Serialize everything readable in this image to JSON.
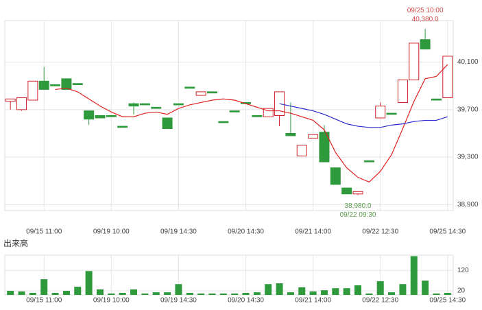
{
  "chart_data": [
    {
      "type": "candlestick",
      "categories": [
        null,
        null,
        null,
        "09/15 11:00",
        null,
        null,
        null,
        null,
        null,
        "09/19 10:00",
        null,
        null,
        null,
        null,
        null,
        "09/19 14:30",
        null,
        null,
        null,
        null,
        null,
        "09/20 14:30",
        null,
        null,
        null,
        null,
        null,
        "09/21 14:00",
        null,
        null,
        null,
        null,
        null,
        "09/22 12:30",
        null,
        null,
        null,
        null,
        null,
        "09/25 14:30"
      ],
      "open": [
        39770,
        39700,
        39780,
        39940,
        39910,
        39960,
        39920,
        39690,
        39650,
        39650,
        39560,
        39750,
        39750,
        39720,
        39630,
        39750,
        39890,
        39820,
        39850,
        39600,
        39690,
        39760,
        39650,
        39640,
        39650,
        39500,
        39310,
        39460,
        39510,
        39210,
        39040,
        38990,
        39270,
        39630,
        39670,
        39760,
        39950,
        40290,
        39790,
        39800
      ],
      "high": [
        39790,
        39800,
        39940,
        40060,
        39910,
        39960,
        39920,
        39690,
        39650,
        39650,
        39560,
        39760,
        39750,
        39720,
        39630,
        39750,
        39890,
        39850,
        39850,
        39600,
        39690,
        39760,
        39650,
        39710,
        39850,
        39760,
        39400,
        39490,
        39570,
        39210,
        39040,
        39010,
        39270,
        39760,
        39670,
        39950,
        40260,
        40380,
        39790,
        40150
      ],
      "low": [
        39700,
        39690,
        39780,
        39870,
        39900,
        39870,
        39910,
        39570,
        39630,
        39640,
        39550,
        39660,
        39740,
        39710,
        39540,
        39740,
        39880,
        39820,
        39840,
        39590,
        39680,
        39750,
        39640,
        39640,
        39560,
        39480,
        39310,
        39460,
        39260,
        39070,
        38990,
        38980,
        39260,
        39630,
        39660,
        39760,
        39950,
        40210,
        39780,
        39800
      ],
      "close": [
        39790,
        39800,
        39940,
        39870,
        39900,
        39870,
        39910,
        39620,
        39630,
        39640,
        39550,
        39730,
        39740,
        39710,
        39540,
        39740,
        39880,
        39850,
        39840,
        39590,
        39680,
        39750,
        39640,
        39710,
        39850,
        39480,
        39400,
        39490,
        39260,
        39070,
        38990,
        39010,
        39260,
        39730,
        39660,
        39950,
        40260,
        40210,
        39780,
        40150
      ],
      "up_color": "#d0202a",
      "down_color": "#2e9a3c",
      "lines": [
        {
          "color": "#e02020",
          "values": [
            null,
            null,
            null,
            null,
            39870,
            39880,
            39850,
            39790,
            39730,
            39680,
            39640,
            39640,
            39670,
            39680,
            39660,
            39710,
            39740,
            39760,
            39780,
            39790,
            39780,
            39750,
            39720,
            39690,
            39690,
            39670,
            39640,
            39610,
            39530,
            39340,
            39210,
            39130,
            39090,
            39180,
            39320,
            39540,
            39770,
            39960,
            39980,
            40080
          ]
        },
        {
          "color": "#2a2ad0",
          "values": [
            null,
            null,
            null,
            null,
            null,
            null,
            null,
            null,
            null,
            null,
            null,
            null,
            null,
            null,
            null,
            null,
            null,
            null,
            null,
            null,
            null,
            null,
            null,
            null,
            39750,
            39730,
            39710,
            39690,
            39660,
            39620,
            39580,
            39560,
            39550,
            39550,
            39570,
            39580,
            39600,
            39610,
            39610,
            39640
          ]
        }
      ],
      "annotations": [
        {
          "time": "09/25 10:00",
          "value": 40380,
          "label": "40,380.0",
          "color": "#d04848"
        },
        {
          "time": "09/22 09:30",
          "value": 38980,
          "label": "38,980.0",
          "color": "#5a9a4a"
        }
      ],
      "ylim": [
        38850,
        40450
      ],
      "yticks": [
        {
          "value": 38900,
          "label": "38,900"
        },
        {
          "value": 39300,
          "label": "39,300"
        },
        {
          "value": 39700,
          "label": "39,700"
        },
        {
          "value": 40100,
          "label": "40,100"
        }
      ],
      "grid": true
    },
    {
      "type": "bar",
      "title": "出来高",
      "categories": [
        null,
        null,
        null,
        "09/15 11:00",
        null,
        null,
        null,
        null,
        null,
        "09/19 10:00",
        null,
        null,
        null,
        null,
        null,
        "09/19 14:30",
        null,
        null,
        null,
        null,
        null,
        "09/20 14:30",
        null,
        null,
        null,
        null,
        null,
        "09/21 14:00",
        null,
        null,
        null,
        null,
        null,
        "09/22 12:30",
        null,
        null,
        null,
        null,
        null,
        "09/25 14:30"
      ],
      "values": [
        20,
        17,
        10,
        77,
        10,
        20,
        40,
        117,
        27,
        7,
        10,
        27,
        7,
        13,
        13,
        53,
        10,
        7,
        7,
        7,
        7,
        10,
        13,
        53,
        57,
        13,
        37,
        17,
        23,
        33,
        33,
        47,
        7,
        67,
        13,
        53,
        190,
        70,
        7,
        10
      ],
      "color": "#2e9a3c",
      "ylim": [
        0,
        195
      ],
      "yticks": [
        20,
        120
      ],
      "grid": true
    }
  ]
}
